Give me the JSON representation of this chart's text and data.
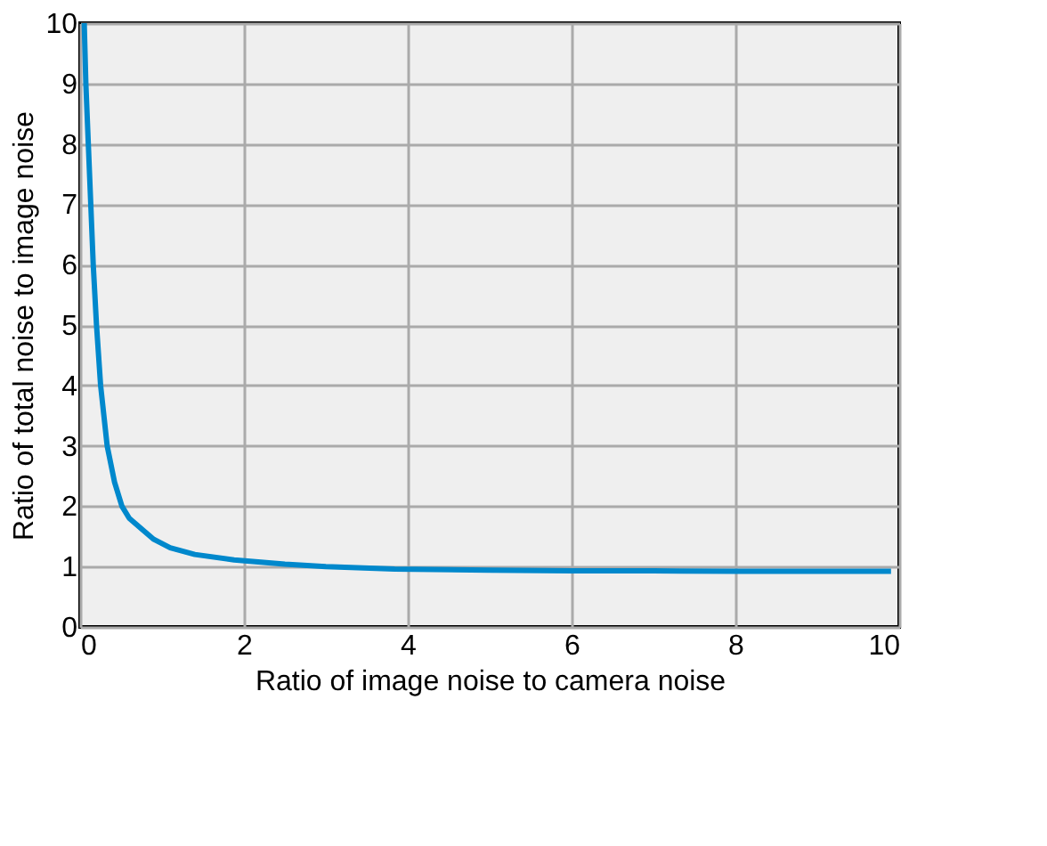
{
  "chart_data": {
    "type": "line",
    "xlabel": "Ratio of image noise to camera noise",
    "ylabel": "Ratio of total noise to image noise",
    "x": [
      0.05,
      0.07,
      0.1,
      0.13,
      0.16,
      0.2,
      0.25,
      0.33,
      0.42,
      0.51,
      0.6,
      0.77,
      0.9,
      1.1,
      1.4,
      1.88,
      2.5,
      3.0,
      3.84,
      5.0,
      6.0,
      7.0,
      8.0,
      9.9
    ],
    "series": [
      {
        "color": "#0088cc",
        "values": [
          10,
          9,
          8,
          7,
          6,
          5,
          4,
          3,
          2.4,
          2,
          1.8,
          1.6,
          1.45,
          1.31,
          1.2,
          1.11,
          1.04,
          1.0,
          0.96,
          0.94,
          0.93,
          0.93,
          0.92,
          0.92
        ]
      }
    ],
    "xlim": [
      0,
      10
    ],
    "ylim": [
      0,
      10
    ],
    "xticks": [
      0,
      2,
      4,
      6,
      8,
      10
    ],
    "yticks": [
      0,
      1,
      2,
      3,
      4,
      5,
      6,
      7,
      8,
      9,
      10
    ],
    "grid": true,
    "marker": "none",
    "line_style": "solid"
  }
}
